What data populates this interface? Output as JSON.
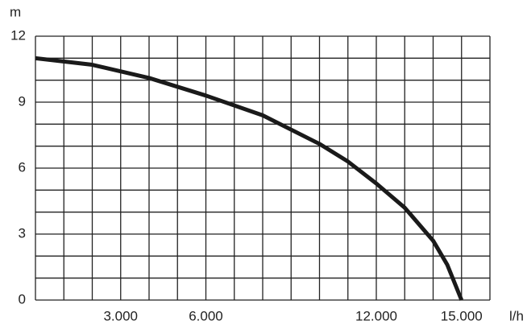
{
  "chart_data": {
    "type": "line",
    "y_label": "m",
    "x_label": "l/h",
    "x": [
      0,
      2000,
      4000,
      6000,
      8000,
      10000,
      11000,
      12000,
      13000,
      14000,
      14500,
      15000
    ],
    "series": [
      {
        "color": "#1a1a1a",
        "values": [
          11,
          10.7,
          10.1,
          9.3,
          8.4,
          7.1,
          6.3,
          5.3,
          4.2,
          2.7,
          1.6,
          0
        ]
      }
    ],
    "xlim": [
      0,
      16000
    ],
    "ylim": [
      0,
      12
    ],
    "xticks": [
      {
        "value": 3000,
        "label": "3.000"
      },
      {
        "value": 6000,
        "label": "6.000"
      },
      {
        "value": 12000,
        "label": "12.000"
      },
      {
        "value": 15000,
        "label": "15.000"
      }
    ],
    "yticks": [
      0,
      3,
      6,
      9,
      12
    ],
    "grid": true,
    "x_grid_ticks": [
      0,
      1000,
      2000,
      3000,
      4000,
      5000,
      6000,
      7000,
      8000,
      9000,
      10000,
      11000,
      12000,
      13000,
      14000,
      15000,
      16000
    ],
    "y_grid_ticks": [
      0,
      1,
      2,
      3,
      4,
      5,
      6,
      7,
      8,
      9,
      10,
      11,
      12
    ]
  }
}
